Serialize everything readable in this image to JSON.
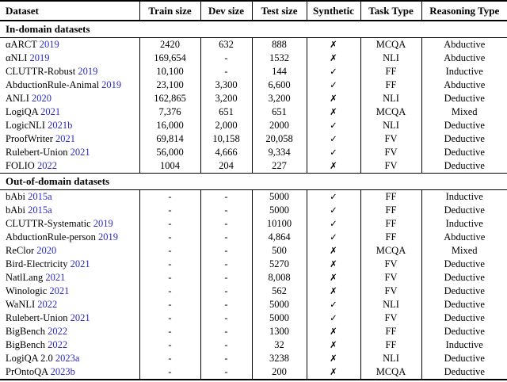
{
  "colors": {
    "link": "#2b2bc4",
    "text": "#000000",
    "rule": "#000000"
  },
  "table": {
    "columns": [
      {
        "label": "Dataset"
      },
      {
        "label": "Train size"
      },
      {
        "label": "Dev size"
      },
      {
        "label": "Test size"
      },
      {
        "label": "Synthetic"
      },
      {
        "label": "Task Type"
      },
      {
        "label": "Reasoning Type"
      }
    ],
    "sections": [
      {
        "label": "In-domain datasets",
        "rows": [
          {
            "name": "αARCT",
            "year": "2019",
            "train": "2420",
            "dev": "632",
            "test": "888",
            "synthetic": "✗",
            "task": "MCQA",
            "reasoning": "Abductive"
          },
          {
            "name": "αNLI",
            "year": "2019",
            "train": "169,654",
            "dev": "-",
            "test": "1532",
            "synthetic": "✗",
            "task": "NLI",
            "reasoning": "Abductive"
          },
          {
            "name": "CLUTTR-Robust",
            "year": "2019",
            "train": "10,100",
            "dev": "-",
            "test": "144",
            "synthetic": "✓",
            "task": "FF",
            "reasoning": "Inductive"
          },
          {
            "name": "AbductionRule-Animal",
            "year": "2019",
            "train": "23,100",
            "dev": "3,300",
            "test": "6,600",
            "synthetic": "✓",
            "task": "FF",
            "reasoning": "Abductive"
          },
          {
            "name": "ANLI",
            "year": "2020",
            "train": "162,865",
            "dev": "3,200",
            "test": "3,200",
            "synthetic": "✗",
            "task": "NLI",
            "reasoning": "Deductive"
          },
          {
            "name": "LogiQA",
            "year": "2021",
            "train": "7,376",
            "dev": "651",
            "test": "651",
            "synthetic": "✗",
            "task": "MCQA",
            "reasoning": "Mixed"
          },
          {
            "name": "LogicNLI",
            "year": "2021b",
            "train": "16,000",
            "dev": "2,000",
            "test": "2000",
            "synthetic": "✓",
            "task": "NLI",
            "reasoning": "Deductive"
          },
          {
            "name": "ProofWriter",
            "year": "2021",
            "train": "69,814",
            "dev": "10,158",
            "test": "20,058",
            "synthetic": "✓",
            "task": "FV",
            "reasoning": "Deductive"
          },
          {
            "name": "Rulebert-Union",
            "year": "2021",
            "train": "56,000",
            "dev": "4,666",
            "test": "9,334",
            "synthetic": "✓",
            "task": "FV",
            "reasoning": "Deductive"
          },
          {
            "name": "FOLIO",
            "year": "2022",
            "train": "1004",
            "dev": "204",
            "test": "227",
            "synthetic": "✗",
            "task": "FV",
            "reasoning": "Deductive"
          }
        ]
      },
      {
        "label": "Out-of-domain datasets",
        "rows": [
          {
            "name": "bAbi",
            "year": "2015a",
            "train": "-",
            "dev": "-",
            "test": "5000",
            "synthetic": "✓",
            "task": "FF",
            "reasoning": "Inductive"
          },
          {
            "name": "bAbi",
            "year": "2015a",
            "train": "-",
            "dev": "-",
            "test": "5000",
            "synthetic": "✓",
            "task": "FF",
            "reasoning": "Deductive"
          },
          {
            "name": "CLUTTR-Systematic",
            "year": "2019",
            "train": "-",
            "dev": "-",
            "test": "10100",
            "synthetic": "✓",
            "task": "FF",
            "reasoning": "Inductive"
          },
          {
            "name": "AbductionRule-person",
            "year": "2019",
            "train": "-",
            "dev": "-",
            "test": "4,864",
            "synthetic": "✓",
            "task": "FF",
            "reasoning": "Abductive"
          },
          {
            "name": "ReClor",
            "year": "2020",
            "train": "-",
            "dev": "-",
            "test": "500",
            "synthetic": "✗",
            "task": "MCQA",
            "reasoning": "Mixed"
          },
          {
            "name": "Bird-Electricity",
            "year": "2021",
            "train": "-",
            "dev": "-",
            "test": "5270",
            "synthetic": "✗",
            "task": "FV",
            "reasoning": "Deductive"
          },
          {
            "name": "NatlLang",
            "year": "2021",
            "train": "-",
            "dev": "-",
            "test": "8,008",
            "synthetic": "✗",
            "task": "FV",
            "reasoning": "Deductive"
          },
          {
            "name": "Winologic",
            "year": "2021",
            "train": "-",
            "dev": "-",
            "test": "562",
            "synthetic": "✗",
            "task": "FV",
            "reasoning": "Deductive"
          },
          {
            "name": "WaNLI",
            "year": "2022",
            "train": "-",
            "dev": "-",
            "test": "5000",
            "synthetic": "✓",
            "task": "NLI",
            "reasoning": "Deductive"
          },
          {
            "name": "Rulebert-Union",
            "year": "2021",
            "train": "-",
            "dev": "-",
            "test": "5000",
            "synthetic": "✓",
            "task": "FV",
            "reasoning": "Deductive"
          },
          {
            "name": "BigBench",
            "year": "2022",
            "train": "-",
            "dev": "-",
            "test": "1300",
            "synthetic": "✗",
            "task": "FF",
            "reasoning": "Deductive"
          },
          {
            "name": "BigBench",
            "year": "2022",
            "train": "-",
            "dev": "-",
            "test": "32",
            "synthetic": "✗",
            "task": "FF",
            "reasoning": "Inductive"
          },
          {
            "name": "LogiQA 2.0",
            "year": "2023a",
            "train": "-",
            "dev": "-",
            "test": "3238",
            "synthetic": "✗",
            "task": "NLI",
            "reasoning": "Deductive"
          },
          {
            "name": "PrOntoQA",
            "year": "2023b",
            "train": "-",
            "dev": "-",
            "test": "200",
            "synthetic": "✗",
            "task": "MCQA",
            "reasoning": "Deductive"
          }
        ]
      }
    ]
  }
}
